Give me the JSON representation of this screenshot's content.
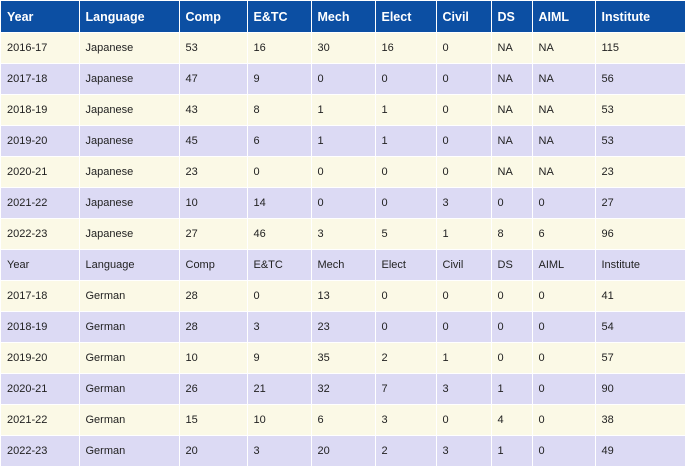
{
  "table": {
    "header": [
      "Year",
      "Language",
      "Comp",
      "E&TC",
      "Mech",
      "Elect",
      "Civil",
      "DS",
      "AIML",
      "Institute"
    ],
    "rows": [
      [
        "2016-17",
        "Japanese",
        "53",
        "16",
        "30",
        "16",
        "0",
        "NA",
        "NA",
        "115"
      ],
      [
        "2017-18",
        "Japanese",
        "47",
        "9",
        "0",
        "0",
        "0",
        "NA",
        "NA",
        "56"
      ],
      [
        "2018-19",
        "Japanese",
        "43",
        "8",
        "1",
        "1",
        "0",
        "NA",
        "NA",
        "53"
      ],
      [
        "2019-20",
        "Japanese",
        "45",
        "6",
        "1",
        "1",
        "0",
        "NA",
        "NA",
        "53"
      ],
      [
        "2020-21",
        "Japanese",
        "23",
        "0",
        "0",
        "0",
        "0",
        "NA",
        "NA",
        "23"
      ],
      [
        "2021-22",
        "Japanese",
        "10",
        "14",
        "0",
        "0",
        "3",
        "0",
        "0",
        "27"
      ],
      [
        "2022-23",
        "Japanese",
        "27",
        "46",
        "3",
        "5",
        "1",
        "8",
        "6",
        "96"
      ],
      [
        "Year",
        "Language",
        "Comp",
        "E&TC",
        "Mech",
        "Elect",
        "Civil",
        "DS",
        "AIML",
        "Institute"
      ],
      [
        "2017-18",
        "German",
        "28",
        "0",
        "13",
        "0",
        "0",
        "0",
        "0",
        "41"
      ],
      [
        "2018-19",
        "German",
        "28",
        "3",
        "23",
        "0",
        "0",
        "0",
        "0",
        "54"
      ],
      [
        "2019-20",
        "German",
        "10",
        "9",
        "35",
        "2",
        "1",
        "0",
        "0",
        "57"
      ],
      [
        "2020-21",
        "German",
        "26",
        "21",
        "32",
        "7",
        "3",
        "1",
        "0",
        "90"
      ],
      [
        "2021-22",
        "German",
        "15",
        "10",
        "6",
        "3",
        "0",
        "4",
        "0",
        "38"
      ],
      [
        "2022-23",
        "German",
        "20",
        "3",
        "20",
        "2",
        "3",
        "1",
        "0",
        "49"
      ]
    ]
  },
  "colors": {
    "header_bg": "#0c4fa3",
    "row_light": "#fbf9e6",
    "row_dark": "#dcdaf4"
  }
}
